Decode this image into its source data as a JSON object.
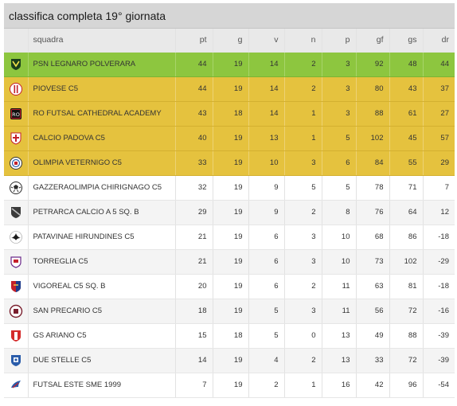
{
  "title": "classifica completa 19° giornata",
  "headers": {
    "team": "squadra",
    "pt": "pt",
    "g": "g",
    "v": "v",
    "n": "n",
    "p": "p",
    "gf": "gf",
    "gs": "gs",
    "dr": "dr"
  },
  "colors": {
    "first": "#8dc63f",
    "promotion": "#e5c23e"
  },
  "rows": [
    {
      "team": "PSN LEGNARO POLVERARA",
      "pt": "44",
      "g": "19",
      "v": "14",
      "n": "2",
      "p": "3",
      "gf": "92",
      "gs": "48",
      "dr": "44",
      "style": "first",
      "logo": "green-shield-logo"
    },
    {
      "team": "PIOVESE C5",
      "pt": "44",
      "g": "19",
      "v": "14",
      "n": "2",
      "p": "3",
      "gf": "80",
      "gs": "43",
      "dr": "37",
      "style": "gold",
      "logo": "red-stripe-crest-logo"
    },
    {
      "team": "RO FUTSAL CATHEDRAL ACADEMY",
      "pt": "43",
      "g": "18",
      "v": "14",
      "n": "1",
      "p": "3",
      "gf": "88",
      "gs": "61",
      "dr": "27",
      "style": "gold",
      "logo": "ro-badge-logo"
    },
    {
      "team": "CALCIO PADOVA C5",
      "pt": "40",
      "g": "19",
      "v": "13",
      "n": "1",
      "p": "5",
      "gf": "102",
      "gs": "45",
      "dr": "57",
      "style": "gold",
      "logo": "red-cross-shield-logo"
    },
    {
      "team": "OLIMPIA VETERNIGO C5",
      "pt": "33",
      "g": "19",
      "v": "10",
      "n": "3",
      "p": "6",
      "gf": "84",
      "gs": "55",
      "dr": "29",
      "style": "gold",
      "logo": "round-crest-logo"
    },
    {
      "team": "GAZZERAOLIMPIA CHIRIGNAGO C5",
      "pt": "32",
      "g": "19",
      "v": "9",
      "n": "5",
      "p": "5",
      "gf": "78",
      "gs": "71",
      "dr": "7",
      "style": "odd",
      "logo": "soccer-ball-logo"
    },
    {
      "team": "PETRARCA CALCIO A 5 Sq. B",
      "pt": "29",
      "g": "19",
      "v": "9",
      "n": "2",
      "p": "8",
      "gf": "76",
      "gs": "64",
      "dr": "12",
      "style": "even",
      "logo": "dark-shield-logo"
    },
    {
      "team": "PATAVINAE HIRUNDINES C5",
      "pt": "21",
      "g": "19",
      "v": "6",
      "n": "3",
      "p": "10",
      "gf": "68",
      "gs": "86",
      "dr": "-18",
      "style": "odd",
      "logo": "swallow-logo"
    },
    {
      "team": "TORREGLIA C5",
      "pt": "21",
      "g": "19",
      "v": "6",
      "n": "3",
      "p": "10",
      "gf": "73",
      "gs": "102",
      "dr": "-29",
      "style": "even",
      "logo": "purple-crest-logo"
    },
    {
      "team": "VIGOREAL C5 Sq. B",
      "pt": "20",
      "g": "19",
      "v": "6",
      "n": "2",
      "p": "11",
      "gf": "63",
      "gs": "81",
      "dr": "-18",
      "style": "odd",
      "logo": "red-blue-shield-logo"
    },
    {
      "team": "SAN PRECARIO C5",
      "pt": "18",
      "g": "19",
      "v": "5",
      "n": "3",
      "p": "11",
      "gf": "56",
      "gs": "72",
      "dr": "-16",
      "style": "even",
      "logo": "maroon-crest-logo"
    },
    {
      "team": "GS ARIANO C5",
      "pt": "15",
      "g": "18",
      "v": "5",
      "n": "0",
      "p": "13",
      "gf": "49",
      "gs": "88",
      "dr": "-39",
      "style": "odd",
      "logo": "red-white-shield-logo"
    },
    {
      "team": "DUE STELLE C5",
      "pt": "14",
      "g": "19",
      "v": "4",
      "n": "2",
      "p": "13",
      "gf": "33",
      "gs": "72",
      "dr": "-39",
      "style": "even",
      "logo": "blue-shield-logo"
    },
    {
      "team": "FUTSAL ESTE SME 1999",
      "pt": "7",
      "g": "19",
      "v": "2",
      "n": "1",
      "p": "16",
      "gf": "42",
      "gs": "96",
      "dr": "-54",
      "style": "odd",
      "logo": "wing-logo"
    }
  ]
}
